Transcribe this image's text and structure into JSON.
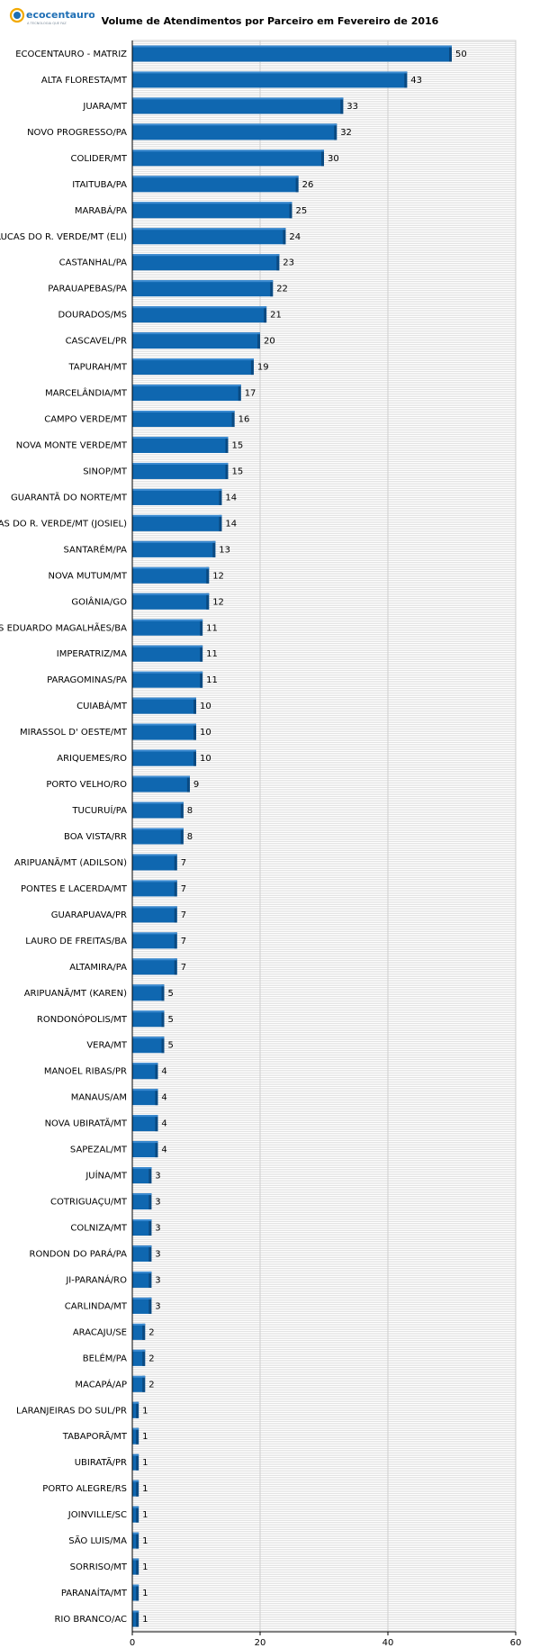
{
  "brand": {
    "name": "ecocentauro",
    "tagline": "A TECNOLOGIA QUE FAZ",
    "colors": {
      "primary": "#1f6fb5",
      "accent": "#f2a900"
    }
  },
  "chart_data": {
    "type": "bar",
    "orientation": "horizontal",
    "title": "Volume de Atendimentos por Parceiro em Fevereiro de 2016",
    "xlabel": "",
    "ylabel": "",
    "xlim": [
      0,
      60
    ],
    "xticks": [
      0,
      20,
      40,
      60
    ],
    "grid": true,
    "bar_color": "#0f67b0",
    "categories": [
      "ECOCENTAURO - MATRIZ",
      "ALTA FLORESTA/MT",
      "JUARA/MT",
      "NOVO PROGRESSO/PA",
      "COLIDER/MT",
      "ITAITUBA/PA",
      "MARABÁ/PA",
      "LUCAS DO R. VERDE/MT (ELI)",
      "CASTANHAL/PA",
      "PARAUAPEBAS/PA",
      "DOURADOS/MS",
      "CASCAVEL/PR",
      "TAPURAH/MT",
      "MARCELÂNDIA/MT",
      "CAMPO VERDE/MT",
      "NOVA MONTE VERDE/MT",
      "SINOP/MT",
      "GUARANTÃ DO NORTE/MT",
      "LUCAS DO R. VERDE/MT (JOSIEL)",
      "SANTARÉM/PA",
      "NOVA MUTUM/MT",
      "GOIÂNIA/GO",
      "LUIS EDUARDO MAGALHÃES/BA",
      "IMPERATRIZ/MA",
      "PARAGOMINAS/PA",
      "CUIABÁ/MT",
      "MIRASSOL D' OESTE/MT",
      "ARIQUEMES/RO",
      "PORTO VELHO/RO",
      "TUCURUÍ/PA",
      "BOA VISTA/RR",
      "ARIPUANÃ/MT (ADILSON)",
      "PONTES E LACERDA/MT",
      "GUARAPUAVA/PR",
      "LAURO DE FREITAS/BA",
      "ALTAMIRA/PA",
      "ARIPUANÃ/MT (KAREN)",
      "RONDONÓPOLIS/MT",
      "VERA/MT",
      "MANOEL RIBAS/PR",
      "MANAUS/AM",
      "NOVA UBIRATÃ/MT",
      "SAPEZAL/MT",
      "JUÍNA/MT",
      "COTRIGUAÇU/MT",
      "COLNIZA/MT",
      "RONDON DO PARÁ/PA",
      "JI-PARANÁ/RO",
      "CARLINDA/MT",
      "ARACAJU/SE",
      "BELÉM/PA",
      "MACAPÁ/AP",
      "LARANJEIRAS DO SUL/PR",
      "TABAPORÃ/MT",
      "UBIRATÃ/PR",
      "PORTO ALEGRE/RS",
      "JOINVILLE/SC",
      "SÃO LUIS/MA",
      "SORRISO/MT",
      "PARANAÍTA/MT",
      "RIO BRANCO/AC"
    ],
    "values": [
      50,
      43,
      33,
      32,
      30,
      26,
      25,
      24,
      23,
      22,
      21,
      20,
      19,
      17,
      16,
      15,
      15,
      14,
      14,
      13,
      12,
      12,
      11,
      11,
      11,
      10,
      10,
      10,
      9,
      8,
      8,
      7,
      7,
      7,
      7,
      7,
      5,
      5,
      5,
      4,
      4,
      4,
      4,
      3,
      3,
      3,
      3,
      3,
      3,
      2,
      2,
      2,
      1,
      1,
      1,
      1,
      1,
      1,
      1,
      1,
      1
    ]
  }
}
